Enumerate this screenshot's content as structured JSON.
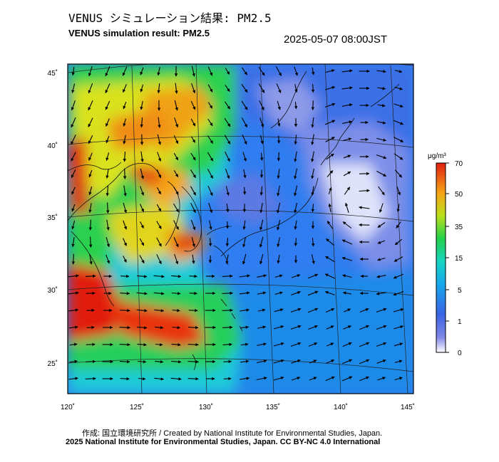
{
  "header": {
    "title_jp": "VENUS シミュレーション結果: PM2.5",
    "title_en": "VENUS simulation result: PM2.5",
    "timestamp": "2025-05-07 08:00JST"
  },
  "map": {
    "lon_ticks": [
      "120˚",
      "125˚",
      "130˚",
      "135˚",
      "140˚",
      "145˚"
    ],
    "lat_ticks": [
      "45˚",
      "40˚",
      "35˚",
      "30˚",
      "25˚"
    ]
  },
  "colorbar": {
    "unit": "μg/m³",
    "ticks": [
      "70",
      "50",
      "35",
      "15",
      "5",
      "1",
      "0"
    ],
    "colors": [
      "#ffffff",
      "#5e6fe4",
      "#1e8cf0",
      "#12c7df",
      "#21d24a",
      "#d4e51b",
      "#f5a615",
      "#e11f10"
    ]
  },
  "footer": {
    "credit_1": "作成: 国立環境研究所 / Created by National Institute for Environmental Studies, Japan.",
    "credit_2": "2025 National Institute for Environmental Studies, Japan. CC BY-NC 4.0 International"
  }
}
